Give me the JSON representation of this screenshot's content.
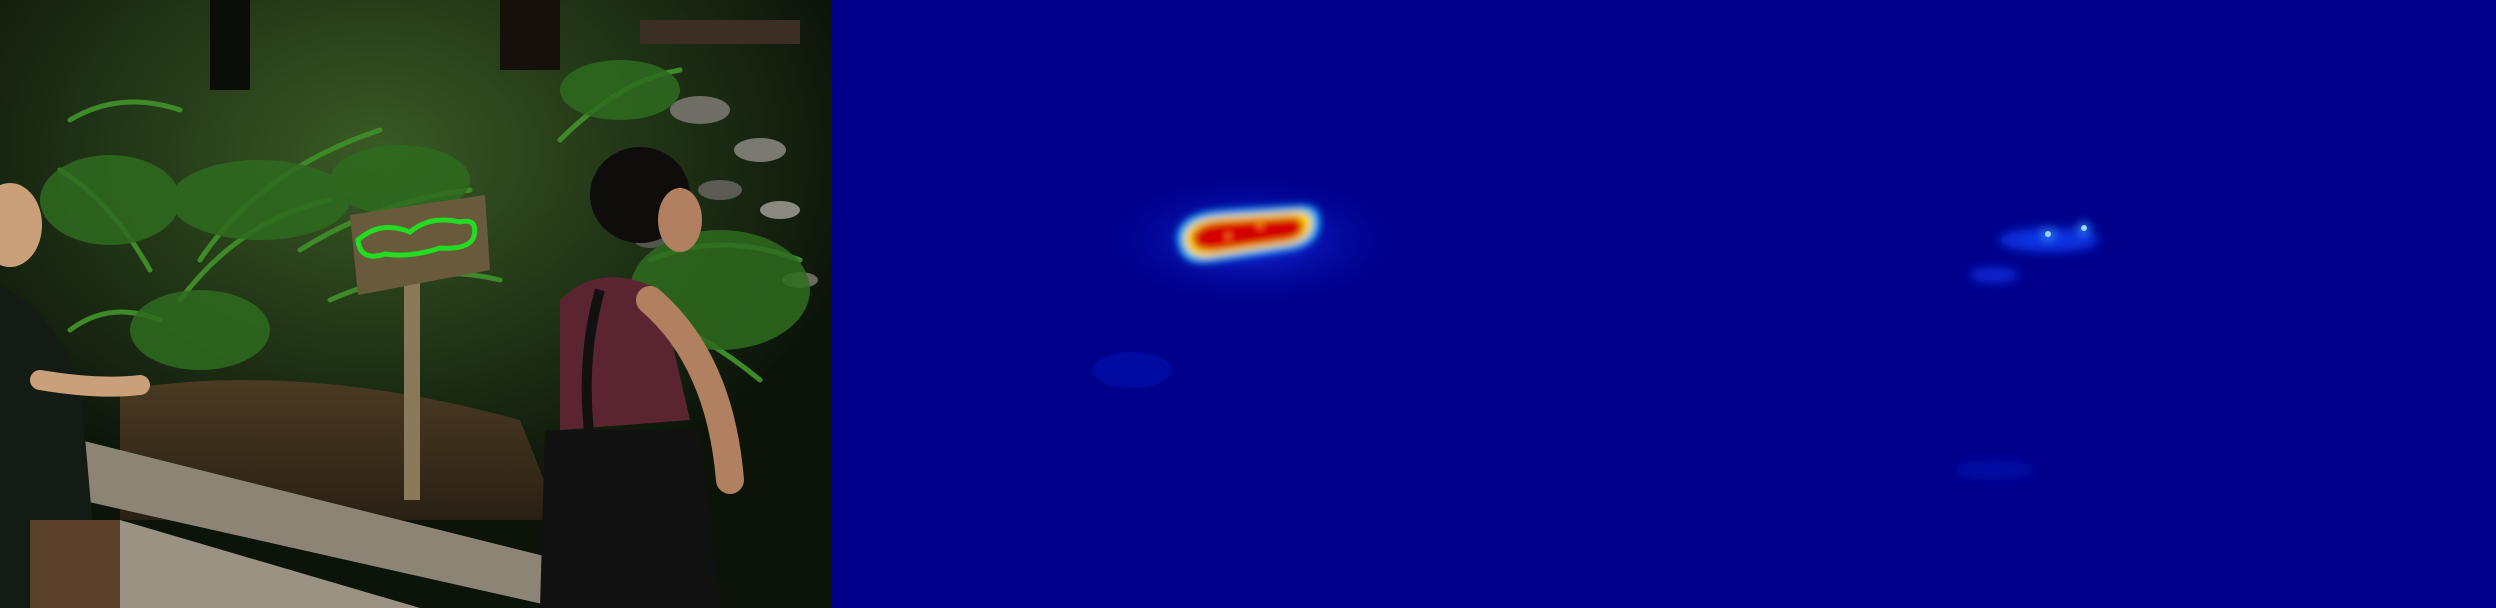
{
  "panels": [
    {
      "id": "photo",
      "content": "forest-trail-photo-with-sign-segmentation-outline"
    },
    {
      "id": "heatmap-1",
      "content": "attention-heatmap-strong-response-on-sign"
    },
    {
      "id": "heatmap-2",
      "content": "attention-heatmap-weak-response"
    }
  ],
  "colors": {
    "heatmap_background": "#00008b",
    "heatmap_hot": "#d40000",
    "heatmap_warm": "#ffd700",
    "heatmap_cool": "#00b4ff",
    "segmentation_outline": "#22dd22",
    "fern_green": "#2e6b1f",
    "sign_wood": "#6a5a3c"
  }
}
